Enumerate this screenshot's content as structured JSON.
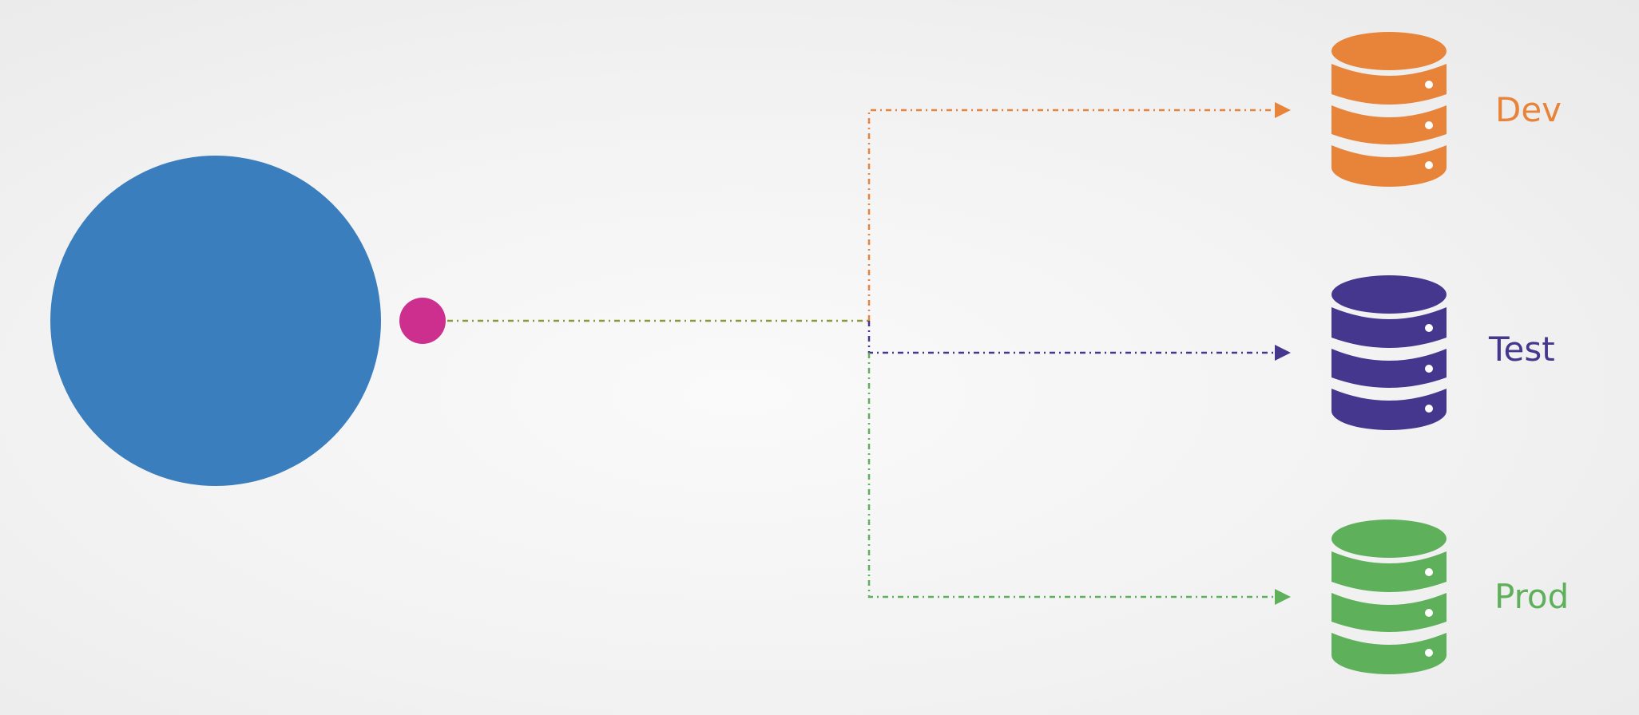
{
  "colors": {
    "source_circle": "#3a7ebd",
    "connector_dot": "#cc2f8e",
    "trunk_line": "#8a9a3a",
    "dev": "#e8833a",
    "test": "#45378d",
    "prod": "#5eb05a"
  },
  "icons": {
    "source": "circle-shape",
    "connector": "dot-shape",
    "database": "database-icon"
  },
  "environments": [
    {
      "key": "dev",
      "label": "Dev"
    },
    {
      "key": "test",
      "label": "Test"
    },
    {
      "key": "prod",
      "label": "Prod"
    }
  ]
}
